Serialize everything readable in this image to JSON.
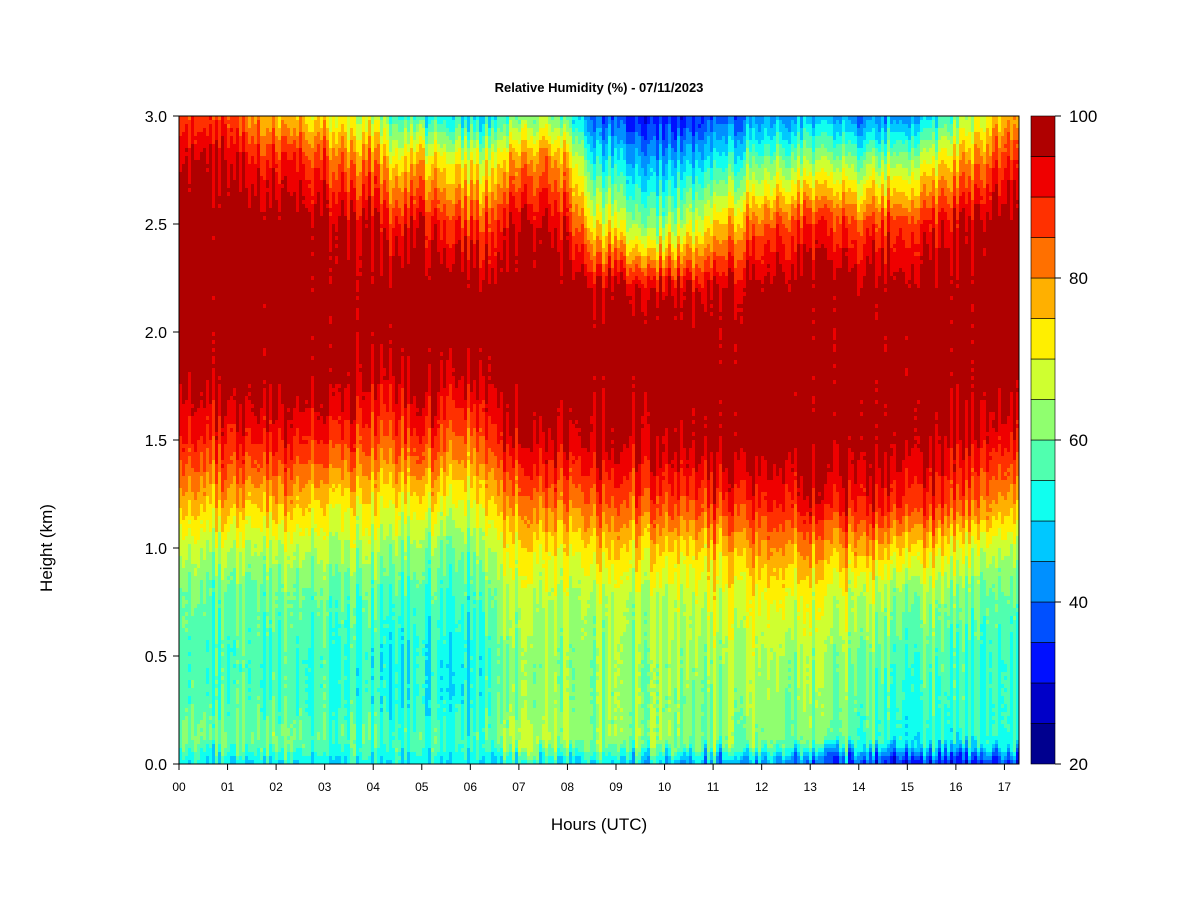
{
  "chart_data": {
    "type": "heatmap",
    "title": "Relative Humidity (%) - 07/11/2023",
    "xlabel": "Hours (UTC)",
    "ylabel": "Height (km)",
    "x_ticks": [
      "00",
      "01",
      "02",
      "03",
      "04",
      "05",
      "06",
      "07",
      "08",
      "09",
      "10",
      "11",
      "12",
      "13",
      "14",
      "15",
      "16",
      "17"
    ],
    "x_tick_values": [
      0,
      1,
      2,
      3,
      4,
      5,
      6,
      7,
      8,
      9,
      10,
      11,
      12,
      13,
      14,
      15,
      16,
      17
    ],
    "xlim": [
      0,
      17.3
    ],
    "y_ticks": [
      "0.0",
      "0.5",
      "1.0",
      "1.5",
      "2.0",
      "2.5",
      "3.0"
    ],
    "y_tick_values": [
      0.0,
      0.5,
      1.0,
      1.5,
      2.0,
      2.5,
      3.0
    ],
    "ylim": [
      0,
      3.0
    ],
    "colorbar": {
      "range": [
        20,
        100
      ],
      "ticks": [
        "20",
        "40",
        "60",
        "80",
        "100"
      ],
      "tick_values": [
        20,
        40,
        60,
        80,
        100
      ],
      "levels": [
        20,
        25,
        30,
        35,
        40,
        45,
        50,
        55,
        60,
        65,
        70,
        75,
        80,
        85,
        90,
        95,
        100
      ],
      "colors": [
        "#00008f",
        "#0000c8",
        "#0010ff",
        "#0050ff",
        "#0090ff",
        "#00c8ff",
        "#10ffef",
        "#50ffaf",
        "#90ff6f",
        "#cfff30",
        "#ffef00",
        "#ffb000",
        "#ff7000",
        "#ff3000",
        "#ef0000",
        "#af0000",
        "#800000"
      ]
    },
    "profile_times": [
      0,
      0.5,
      1,
      1.5,
      2,
      2.5,
      3,
      3.5,
      4,
      4.5,
      5,
      5.5,
      6,
      6.5,
      7,
      7.5,
      8,
      8.5,
      9,
      9.5,
      10,
      10.5,
      11,
      11.5,
      12,
      12.5,
      13,
      13.5,
      14,
      14.5,
      15,
      15.5,
      16,
      16.5,
      17,
      17.3
    ],
    "profile_heights_km": [
      0.0,
      0.1,
      0.3,
      0.5,
      0.8,
      1.0,
      1.2,
      1.5,
      1.8,
      2.0,
      2.2,
      2.5,
      2.8,
      3.0
    ],
    "rh_percent": [
      [
        50,
        58,
        56,
        56,
        58,
        65,
        75,
        88,
        95,
        100,
        100,
        100,
        92,
        85
      ],
      [
        50,
        60,
        57,
        56,
        59,
        66,
        76,
        90,
        98,
        100,
        100,
        100,
        95,
        85
      ],
      [
        50,
        60,
        57,
        56,
        59,
        66,
        78,
        90,
        100,
        100,
        100,
        100,
        95,
        88
      ],
      [
        50,
        62,
        58,
        58,
        60,
        66,
        76,
        92,
        100,
        100,
        100,
        100,
        92,
        80
      ],
      [
        50,
        62,
        57,
        56,
        60,
        66,
        78,
        92,
        100,
        100,
        100,
        100,
        90,
        76
      ],
      [
        50,
        60,
        56,
        56,
        60,
        66,
        76,
        90,
        100,
        100,
        100,
        100,
        90,
        76
      ],
      [
        50,
        58,
        56,
        56,
        60,
        66,
        74,
        90,
        100,
        100,
        100,
        98,
        86,
        72
      ],
      [
        50,
        58,
        55,
        55,
        58,
        65,
        72,
        88,
        98,
        100,
        100,
        96,
        82,
        68
      ],
      [
        50,
        58,
        54,
        54,
        58,
        65,
        72,
        85,
        95,
        100,
        100,
        95,
        82,
        66
      ],
      [
        50,
        56,
        52,
        52,
        56,
        62,
        70,
        85,
        95,
        100,
        100,
        90,
        72,
        55
      ],
      [
        50,
        56,
        52,
        52,
        56,
        62,
        72,
        88,
        100,
        100,
        100,
        92,
        75,
        52
      ],
      [
        50,
        56,
        52,
        52,
        56,
        60,
        70,
        85,
        95,
        100,
        100,
        88,
        70,
        50
      ],
      [
        50,
        55,
        50,
        50,
        55,
        60,
        68,
        82,
        95,
        100,
        100,
        86,
        68,
        48
      ],
      [
        50,
        62,
        60,
        60,
        64,
        70,
        78,
        92,
        100,
        100,
        100,
        90,
        72,
        52
      ],
      [
        50,
        66,
        62,
        62,
        66,
        72,
        80,
        94,
        100,
        100,
        100,
        95,
        80,
        60
      ],
      [
        50,
        66,
        62,
        62,
        66,
        72,
        82,
        95,
        100,
        100,
        100,
        95,
        82,
        62
      ],
      [
        50,
        64,
        62,
        62,
        66,
        72,
        82,
        95,
        100,
        100,
        100,
        90,
        75,
        55
      ],
      [
        50,
        62,
        62,
        62,
        66,
        74,
        84,
        96,
        100,
        100,
        98,
        75,
        55,
        40
      ],
      [
        48,
        62,
        62,
        62,
        66,
        74,
        84,
        96,
        100,
        100,
        96,
        68,
        48,
        34
      ],
      [
        46,
        62,
        62,
        62,
        66,
        74,
        85,
        96,
        100,
        100,
        95,
        62,
        45,
        32
      ],
      [
        44,
        62,
        62,
        62,
        66,
        74,
        85,
        96,
        100,
        100,
        95,
        62,
        44,
        32
      ],
      [
        44,
        62,
        62,
        64,
        68,
        74,
        86,
        98,
        100,
        100,
        96,
        68,
        48,
        34
      ],
      [
        42,
        62,
        62,
        64,
        70,
        76,
        88,
        100,
        100,
        100,
        97,
        75,
        52,
        38
      ],
      [
        42,
        62,
        64,
        66,
        70,
        78,
        88,
        100,
        100,
        100,
        98,
        80,
        56,
        40
      ],
      [
        42,
        62,
        64,
        66,
        72,
        80,
        90,
        100,
        100,
        100,
        98,
        85,
        60,
        44
      ],
      [
        40,
        60,
        62,
        64,
        72,
        80,
        90,
        100,
        100,
        100,
        100,
        88,
        62,
        44
      ],
      [
        38,
        60,
        62,
        64,
        70,
        80,
        92,
        100,
        100,
        100,
        100,
        88,
        62,
        44
      ],
      [
        36,
        60,
        62,
        64,
        70,
        80,
        92,
        100,
        100,
        100,
        100,
        88,
        62,
        44
      ],
      [
        36,
        58,
        60,
        62,
        68,
        80,
        92,
        100,
        100,
        100,
        100,
        88,
        62,
        42
      ],
      [
        34,
        56,
        58,
        60,
        66,
        78,
        92,
        100,
        100,
        100,
        100,
        88,
        62,
        42
      ],
      [
        32,
        54,
        56,
        58,
        64,
        76,
        90,
        100,
        100,
        100,
        100,
        90,
        65,
        45
      ],
      [
        32,
        54,
        56,
        58,
        64,
        74,
        88,
        98,
        100,
        100,
        100,
        92,
        70,
        50
      ],
      [
        32,
        54,
        56,
        56,
        62,
        72,
        86,
        95,
        100,
        100,
        100,
        94,
        75,
        58
      ],
      [
        32,
        54,
        56,
        56,
        60,
        68,
        82,
        94,
        100,
        100,
        100,
        98,
        82,
        68
      ],
      [
        32,
        54,
        56,
        56,
        60,
        66,
        78,
        92,
        100,
        100,
        100,
        100,
        90,
        78
      ],
      [
        32,
        54,
        56,
        56,
        60,
        66,
        78,
        92,
        100,
        100,
        100,
        100,
        92,
        80
      ]
    ]
  }
}
